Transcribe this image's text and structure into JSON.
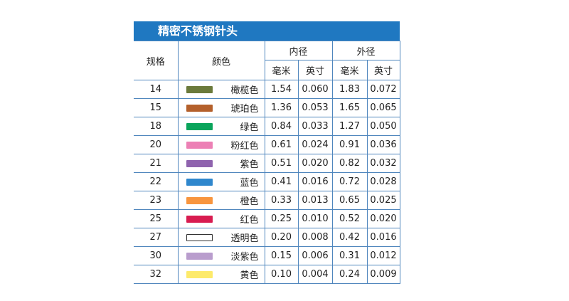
{
  "header": {
    "title": "精密不锈钢针头"
  },
  "columns": {
    "gauge": "规格",
    "color": "颜色",
    "inner": "内径",
    "outer": "外径",
    "mm": "毫米",
    "inch": "英寸"
  },
  "table": {
    "rows": [
      {
        "gauge": "14",
        "color": "#6b7a3b",
        "name": "橄榄色",
        "inner_mm": "1.54",
        "inner_in": "0.060",
        "outer_mm": "1.83",
        "outer_in": "0.072"
      },
      {
        "gauge": "15",
        "color": "#b4602b",
        "name": "琥珀色",
        "inner_mm": "1.36",
        "inner_in": "0.053",
        "outer_mm": "1.65",
        "outer_in": "0.065"
      },
      {
        "gauge": "18",
        "color": "#0aa45b",
        "name": "绿色",
        "inner_mm": "0.84",
        "inner_in": "0.033",
        "outer_mm": "1.27",
        "outer_in": "0.050"
      },
      {
        "gauge": "20",
        "color": "#ec80b5",
        "name": "粉红色",
        "inner_mm": "0.61",
        "inner_in": "0.024",
        "outer_mm": "0.91",
        "outer_in": "0.036"
      },
      {
        "gauge": "21",
        "color": "#8f63ae",
        "name": "紫色",
        "inner_mm": "0.51",
        "inner_in": "0.020",
        "outer_mm": "0.82",
        "outer_in": "0.032"
      },
      {
        "gauge": "22",
        "color": "#2f87cd",
        "name": "蓝色",
        "inner_mm": "0.41",
        "inner_in": "0.016",
        "outer_mm": "0.72",
        "outer_in": "0.028"
      },
      {
        "gauge": "23",
        "color": "#f8953e",
        "name": "橙色",
        "inner_mm": "0.33",
        "inner_in": "0.013",
        "outer_mm": "0.65",
        "outer_in": "0.025"
      },
      {
        "gauge": "25",
        "color": "#d81c50",
        "name": "红色",
        "inner_mm": "0.25",
        "inner_in": "0.010",
        "outer_mm": "0.52",
        "outer_in": "0.020"
      },
      {
        "gauge": "27",
        "color": "#ffffff",
        "name": "透明色",
        "inner_mm": "0.20",
        "inner_in": "0.008",
        "outer_mm": "0.42",
        "outer_in": "0.016"
      },
      {
        "gauge": "30",
        "color": "#b99dcd",
        "name": "淡紫色",
        "inner_mm": "0.15",
        "inner_in": "0.006",
        "outer_mm": "0.31",
        "outer_in": "0.012"
      },
      {
        "gauge": "32",
        "color": "#fdea6b",
        "name": "黄色",
        "inner_mm": "0.10",
        "inner_in": "0.004",
        "outer_mm": "0.24",
        "outer_in": "0.009"
      }
    ]
  }
}
